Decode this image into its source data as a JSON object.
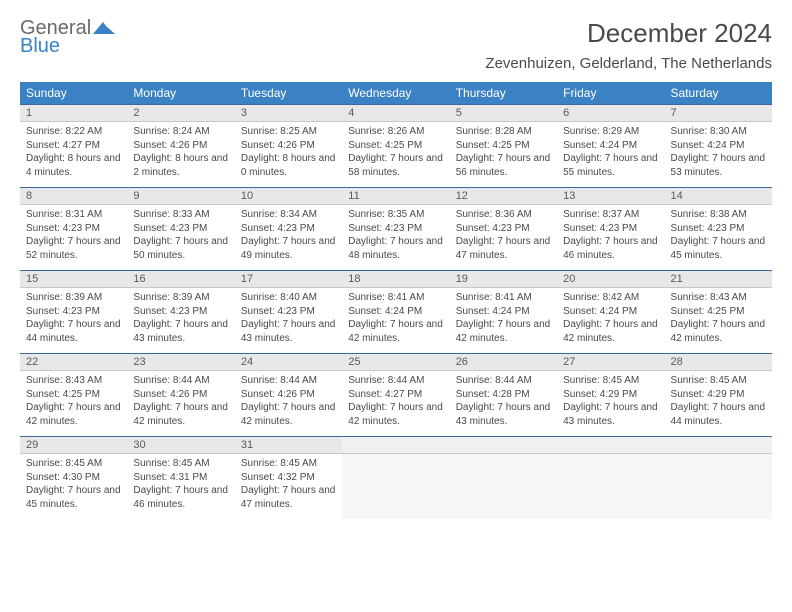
{
  "logo": {
    "general": "General",
    "blue": "Blue",
    "mark_color": "#3a82c4"
  },
  "title": "December 2024",
  "location": "Zevenhuizen, Gelderland, The Netherlands",
  "header_bg": "#3a82c4",
  "header_fg": "#ffffff",
  "daynum_bg": "#e8e8e8",
  "daynum_border_top": "#3a6a9a",
  "day_labels": [
    "Sunday",
    "Monday",
    "Tuesday",
    "Wednesday",
    "Thursday",
    "Friday",
    "Saturday"
  ],
  "weeks": [
    [
      {
        "n": "1",
        "sr": "8:22 AM",
        "ss": "4:27 PM",
        "dl": "8 hours and 4 minutes."
      },
      {
        "n": "2",
        "sr": "8:24 AM",
        "ss": "4:26 PM",
        "dl": "8 hours and 2 minutes."
      },
      {
        "n": "3",
        "sr": "8:25 AM",
        "ss": "4:26 PM",
        "dl": "8 hours and 0 minutes."
      },
      {
        "n": "4",
        "sr": "8:26 AM",
        "ss": "4:25 PM",
        "dl": "7 hours and 58 minutes."
      },
      {
        "n": "5",
        "sr": "8:28 AM",
        "ss": "4:25 PM",
        "dl": "7 hours and 56 minutes."
      },
      {
        "n": "6",
        "sr": "8:29 AM",
        "ss": "4:24 PM",
        "dl": "7 hours and 55 minutes."
      },
      {
        "n": "7",
        "sr": "8:30 AM",
        "ss": "4:24 PM",
        "dl": "7 hours and 53 minutes."
      }
    ],
    [
      {
        "n": "8",
        "sr": "8:31 AM",
        "ss": "4:23 PM",
        "dl": "7 hours and 52 minutes."
      },
      {
        "n": "9",
        "sr": "8:33 AM",
        "ss": "4:23 PM",
        "dl": "7 hours and 50 minutes."
      },
      {
        "n": "10",
        "sr": "8:34 AM",
        "ss": "4:23 PM",
        "dl": "7 hours and 49 minutes."
      },
      {
        "n": "11",
        "sr": "8:35 AM",
        "ss": "4:23 PM",
        "dl": "7 hours and 48 minutes."
      },
      {
        "n": "12",
        "sr": "8:36 AM",
        "ss": "4:23 PM",
        "dl": "7 hours and 47 minutes."
      },
      {
        "n": "13",
        "sr": "8:37 AM",
        "ss": "4:23 PM",
        "dl": "7 hours and 46 minutes."
      },
      {
        "n": "14",
        "sr": "8:38 AM",
        "ss": "4:23 PM",
        "dl": "7 hours and 45 minutes."
      }
    ],
    [
      {
        "n": "15",
        "sr": "8:39 AM",
        "ss": "4:23 PM",
        "dl": "7 hours and 44 minutes."
      },
      {
        "n": "16",
        "sr": "8:39 AM",
        "ss": "4:23 PM",
        "dl": "7 hours and 43 minutes."
      },
      {
        "n": "17",
        "sr": "8:40 AM",
        "ss": "4:23 PM",
        "dl": "7 hours and 43 minutes."
      },
      {
        "n": "18",
        "sr": "8:41 AM",
        "ss": "4:24 PM",
        "dl": "7 hours and 42 minutes."
      },
      {
        "n": "19",
        "sr": "8:41 AM",
        "ss": "4:24 PM",
        "dl": "7 hours and 42 minutes."
      },
      {
        "n": "20",
        "sr": "8:42 AM",
        "ss": "4:24 PM",
        "dl": "7 hours and 42 minutes."
      },
      {
        "n": "21",
        "sr": "8:43 AM",
        "ss": "4:25 PM",
        "dl": "7 hours and 42 minutes."
      }
    ],
    [
      {
        "n": "22",
        "sr": "8:43 AM",
        "ss": "4:25 PM",
        "dl": "7 hours and 42 minutes."
      },
      {
        "n": "23",
        "sr": "8:44 AM",
        "ss": "4:26 PM",
        "dl": "7 hours and 42 minutes."
      },
      {
        "n": "24",
        "sr": "8:44 AM",
        "ss": "4:26 PM",
        "dl": "7 hours and 42 minutes."
      },
      {
        "n": "25",
        "sr": "8:44 AM",
        "ss": "4:27 PM",
        "dl": "7 hours and 42 minutes."
      },
      {
        "n": "26",
        "sr": "8:44 AM",
        "ss": "4:28 PM",
        "dl": "7 hours and 43 minutes."
      },
      {
        "n": "27",
        "sr": "8:45 AM",
        "ss": "4:29 PM",
        "dl": "7 hours and 43 minutes."
      },
      {
        "n": "28",
        "sr": "8:45 AM",
        "ss": "4:29 PM",
        "dl": "7 hours and 44 minutes."
      }
    ],
    [
      {
        "n": "29",
        "sr": "8:45 AM",
        "ss": "4:30 PM",
        "dl": "7 hours and 45 minutes."
      },
      {
        "n": "30",
        "sr": "8:45 AM",
        "ss": "4:31 PM",
        "dl": "7 hours and 46 minutes."
      },
      {
        "n": "31",
        "sr": "8:45 AM",
        "ss": "4:32 PM",
        "dl": "7 hours and 47 minutes."
      },
      null,
      null,
      null,
      null
    ]
  ],
  "labels": {
    "sunrise": "Sunrise:",
    "sunset": "Sunset:",
    "daylight": "Daylight:"
  }
}
